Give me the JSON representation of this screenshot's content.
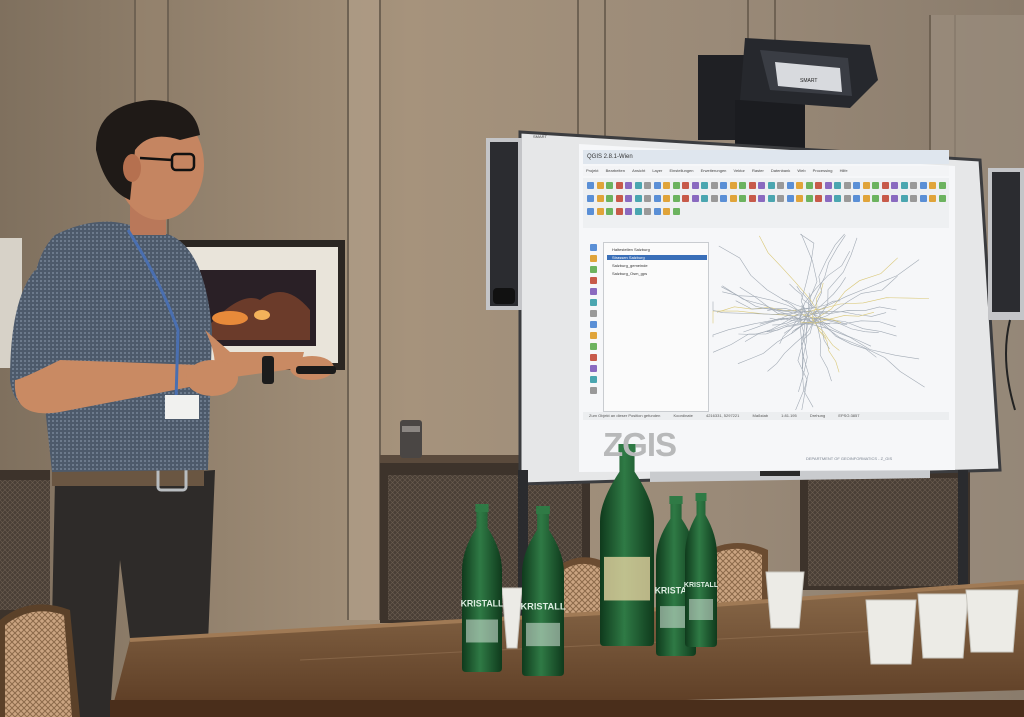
{
  "scene": {
    "description_label": "",
    "colors": {
      "wall": "#8d7c69",
      "wall_light": "#b8a893",
      "table": "#6e4a2c",
      "bottle_green": "#1f5a2e",
      "screen_glow": "#f5f7fa",
      "shirt": "#4f5c6c"
    }
  },
  "screen": {
    "app_title": "QGIS 2.8.1-Wien",
    "menu_items": [
      "Projekt",
      "Bearbeiten",
      "Ansicht",
      "Layer",
      "Einstellungen",
      "Erweiterungen",
      "Vektor",
      "Raster",
      "Datenbank",
      "Web",
      "Processing",
      "Hilfe"
    ],
    "layers": [
      {
        "label": "Haltestellen Salzburg",
        "selected": false
      },
      {
        "label": "Strassen Salzburg",
        "selected": true
      },
      {
        "label": "Salzburg_gemeinde",
        "selected": false
      },
      {
        "label": "Salzburg_Osm_gps",
        "selected": false
      }
    ],
    "status": {
      "message": "Zum Objekt an dieser Position gefunden",
      "coordinate_label": "Koordinate",
      "coordinate_value": "4216331, 5297221",
      "scale_label": "Maßstab",
      "scale_value": "1:81.195",
      "rotation_label": "Drehung",
      "crs": "EPSG:3857"
    },
    "brand": "ZGIS",
    "brand_sub": "DEPARTMENT OF GEOINFORMATICS - Z_GIS",
    "board_brand": "SMART"
  },
  "projector": {
    "brand": "SMART"
  },
  "bottles": [
    {
      "label": "KRISTALL"
    },
    {
      "label": "KRISTALL"
    },
    {
      "label": ""
    },
    {
      "label": "KRISTALL"
    },
    {
      "label": "KRISTALL"
    }
  ]
}
